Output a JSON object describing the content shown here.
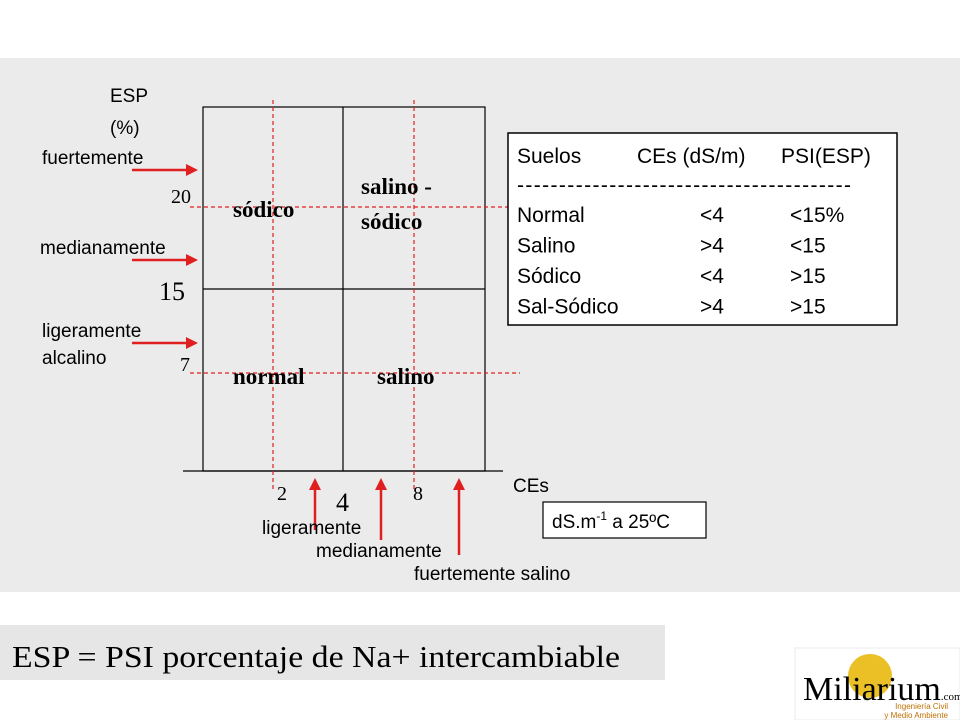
{
  "axis": {
    "y_label": "ESP",
    "y_unit": "(%)",
    "x_label": "CEs"
  },
  "y_levels": [
    {
      "label": "fuertemente",
      "value": "20"
    },
    {
      "label": "medianamente",
      "value": "15"
    },
    {
      "label": "ligeramente",
      "label2": "alcalino",
      "value": "7"
    }
  ],
  "x_levels": [
    {
      "label": "ligeramente",
      "value": "2"
    },
    {
      "label": "medianamente",
      "value": "4"
    },
    {
      "label": "fuertemente salino",
      "value": "8"
    }
  ],
  "quadrants": {
    "top_left": "sódico",
    "top_right": [
      "salino -",
      "sódico"
    ],
    "bottom_left": "normal",
    "bottom_right": "salino"
  },
  "unit_box": {
    "base": "dS.m",
    "sup": "-1",
    "rest": " a 25ºC"
  },
  "table": {
    "header": [
      "Suelos",
      "CEs (dS/m)",
      "PSI(ESP)"
    ],
    "divider": "----------------------------------------",
    "rows": [
      [
        "Normal",
        "<4",
        "<15%"
      ],
      [
        "Salino",
        ">4",
        "<15"
      ],
      [
        "Sódico",
        "<4",
        ">15"
      ],
      [
        "Sal-Sódico",
        ">4",
        ">15"
      ]
    ]
  },
  "caption": "ESP = PSI porcentaje de Na+ intercambiable",
  "logo": {
    "name": "Miliarium",
    "suffix": ".com",
    "line1": "Ingeniería Civil",
    "line2": "y Medio Ambiente"
  }
}
